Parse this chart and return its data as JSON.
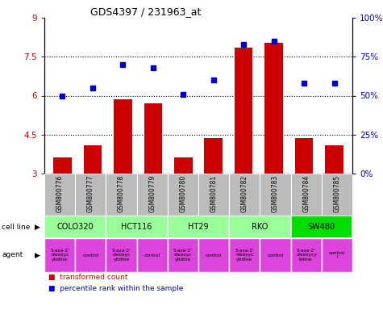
{
  "title": "GDS4397 / 231963_at",
  "samples": [
    "GSM800776",
    "GSM800777",
    "GSM800778",
    "GSM800779",
    "GSM800780",
    "GSM800781",
    "GSM800782",
    "GSM800783",
    "GSM800784",
    "GSM800785"
  ],
  "bar_values": [
    3.62,
    4.1,
    5.85,
    5.72,
    3.62,
    4.38,
    7.85,
    8.05,
    4.38,
    4.1
  ],
  "dot_values": [
    50,
    55,
    70,
    68,
    51,
    60,
    83,
    85,
    58,
    58
  ],
  "ylim_left": [
    3.0,
    9.0
  ],
  "ylim_right": [
    0,
    100
  ],
  "yticks_left": [
    3.0,
    4.5,
    6.0,
    7.5,
    9.0
  ],
  "yticks_right": [
    0,
    25,
    50,
    75,
    100
  ],
  "ytick_labels_left": [
    "3",
    "4.5",
    "6",
    "7.5",
    "9"
  ],
  "ytick_labels_right": [
    "0%",
    "25%",
    "50%",
    "75%",
    "100%"
  ],
  "hlines": [
    4.5,
    6.0,
    7.5
  ],
  "bar_color": "#cc0000",
  "dot_color": "#0000cc",
  "bar_bottom": 3.0,
  "cell_lines": [
    {
      "label": "COLO320",
      "start": 0,
      "end": 2,
      "color": "#99ff99"
    },
    {
      "label": "HCT116",
      "start": 2,
      "end": 4,
      "color": "#99ff99"
    },
    {
      "label": "HT29",
      "start": 4,
      "end": 6,
      "color": "#99ff99"
    },
    {
      "label": "RKO",
      "start": 6,
      "end": 8,
      "color": "#99ff99"
    },
    {
      "label": "SW480",
      "start": 8,
      "end": 10,
      "color": "#00dd00"
    }
  ],
  "agents": [
    {
      "label": "5-aza-2'\n-deoxyc\nytidine",
      "start": 0,
      "end": 1,
      "color": "#dd44dd"
    },
    {
      "label": "control",
      "start": 1,
      "end": 2,
      "color": "#dd44dd"
    },
    {
      "label": "5-aza-2'\n-deoxyc\nytidine",
      "start": 2,
      "end": 3,
      "color": "#dd44dd"
    },
    {
      "label": "control",
      "start": 3,
      "end": 4,
      "color": "#dd44dd"
    },
    {
      "label": "5-aza-2'\n-deoxyc\nytidine",
      "start": 4,
      "end": 5,
      "color": "#dd44dd"
    },
    {
      "label": "control",
      "start": 5,
      "end": 6,
      "color": "#dd44dd"
    },
    {
      "label": "5-aza-2'\n-deoxyc\nytidine",
      "start": 6,
      "end": 7,
      "color": "#dd44dd"
    },
    {
      "label": "control",
      "start": 7,
      "end": 8,
      "color": "#dd44dd"
    },
    {
      "label": "5-aza-2'\n-deoxycy\ntidine",
      "start": 8,
      "end": 9,
      "color": "#dd44dd"
    },
    {
      "label": "control\nl",
      "start": 9,
      "end": 10,
      "color": "#dd44dd"
    }
  ],
  "legend_items": [
    {
      "label": "transformed count",
      "color": "#cc0000"
    },
    {
      "label": "percentile rank within the sample",
      "color": "#0000cc"
    }
  ],
  "sample_row_color": "#bbbbbb",
  "xlabel_cell_line": "cell line",
  "xlabel_agent": "agent",
  "bg_color": "#ffffff"
}
